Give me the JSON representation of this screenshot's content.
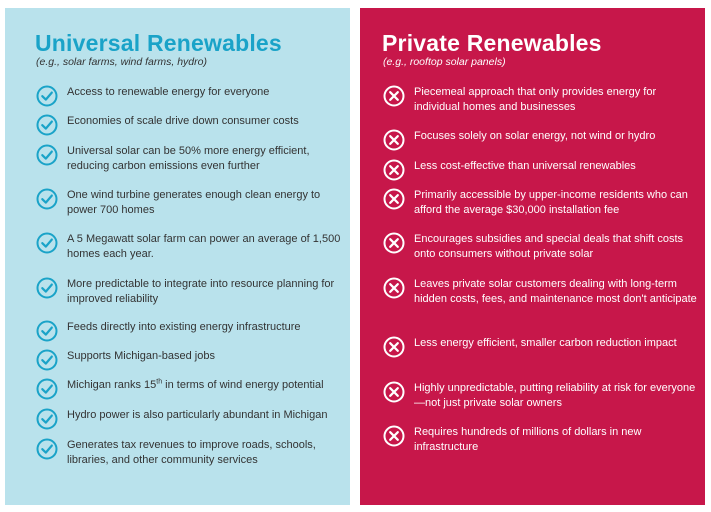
{
  "universal": {
    "title": "Universal Renewables",
    "subtitle": "(e.g., solar farms, wind farms, hydro)",
    "icon": "check-circle-icon",
    "color": "#1aa3c8",
    "background": "#b9e2ec",
    "items": [
      "Access to renewable energy for everyone",
      "Economies of scale drive down consumer costs",
      "Universal solar can be 50% more energy efficient, reducing carbon emissions even further",
      "One wind turbine generates enough clean energy to power 700 homes",
      "A 5 Megawatt solar farm can power an average of 1,500 homes each year.",
      "More predictable to integrate into resource planning for improved reliability",
      "Feeds directly into existing energy infrastructure",
      "Supports Michigan-based jobs",
      "Michigan ranks 15th in terms of wind energy potential",
      "Hydro power is also particularly abundant in Michigan",
      "Generates tax revenues to improve roads, schools, libraries, and other community services"
    ]
  },
  "private": {
    "title": "Private Renewables",
    "subtitle": "(e.g., rooftop solar panels)",
    "icon": "x-circle-icon",
    "background": "#c7174a",
    "items": [
      "Piecemeal approach that only provides energy for individual homes and businesses",
      "Focuses solely on solar energy, not wind or hydro",
      "Less cost-effective than universal renewables",
      "Primarily accessible by upper-income residents who can afford the average $30,000 installation fee",
      "Encourages subsidies and special deals that shift costs onto consumers without private solar",
      "Leaves private solar customers dealing with long-term hidden costs, fees, and maintenance most don't anticipate",
      "Less energy efficient, smaller carbon reduction impact",
      "Highly unpredictable, putting reliability at risk for everyone—not just private solar owners",
      "Requires hundreds of millions of dollars in new infrastructure"
    ]
  }
}
